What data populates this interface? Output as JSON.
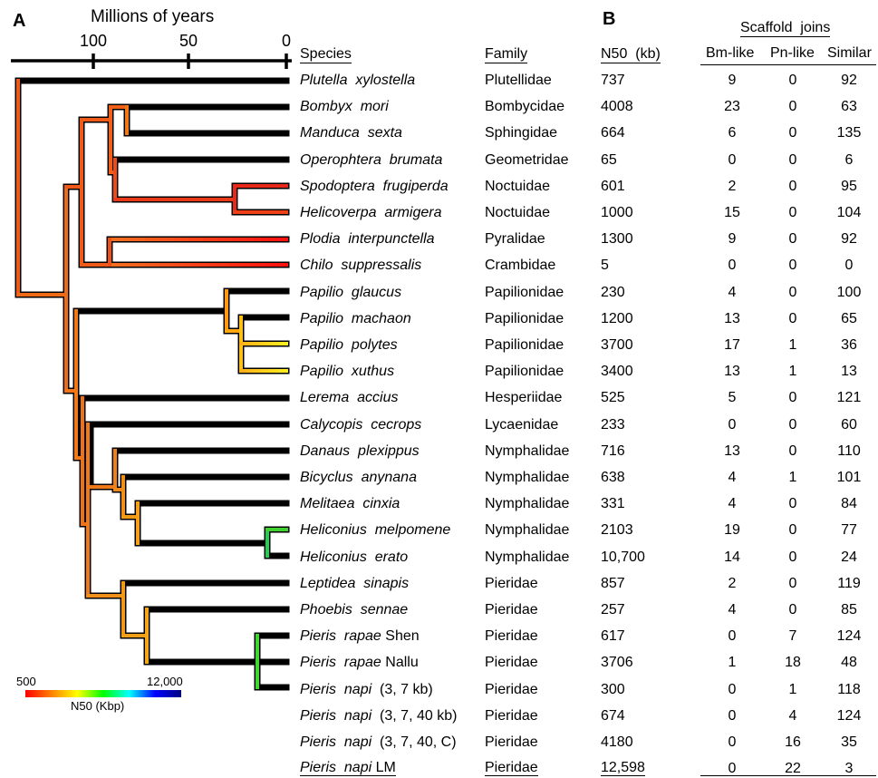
{
  "panel_a_label": "A",
  "panel_b_label": "B",
  "axis": {
    "title": "Millions of years",
    "ticks": [
      "100",
      "50",
      "0"
    ]
  },
  "headers": {
    "species": "Species",
    "family": "Family",
    "n50": "N50  (kb)",
    "scaffold_joins": "Scaffold  joins",
    "bm_like": "Bm-like",
    "pn_like": "Pn-like",
    "similar": "Similar"
  },
  "legend": {
    "min": "500",
    "max": "12,000",
    "label": "N50 (Kbp)",
    "colors": [
      "#ff0000",
      "#ff8000",
      "#ffff00",
      "#00ff00",
      "#00ffff",
      "#0000ff"
    ]
  },
  "rows": [
    {
      "species": "Plutella  xylostella",
      "suffix": "",
      "family": "Plutellidae",
      "n50": "737",
      "bm": "9",
      "pn": "0",
      "similar": "92"
    },
    {
      "species": "Bombyx  mori",
      "suffix": "",
      "family": "Bombycidae",
      "n50": "4008",
      "bm": "23",
      "pn": "0",
      "similar": "63"
    },
    {
      "species": "Manduca  sexta",
      "suffix": "",
      "family": "Sphingidae",
      "n50": "664",
      "bm": "6",
      "pn": "0",
      "similar": "135"
    },
    {
      "species": "Operophtera  brumata",
      "suffix": "",
      "family": "Geometridae",
      "n50": "65",
      "bm": "0",
      "pn": "0",
      "similar": "6"
    },
    {
      "species": "Spodoptera  frugiperda",
      "suffix": "",
      "family": "Noctuidae",
      "n50": "601",
      "bm": "2",
      "pn": "0",
      "similar": "95"
    },
    {
      "species": "Helicoverpa  armigera",
      "suffix": "",
      "family": "Noctuidae",
      "n50": "1000",
      "bm": "15",
      "pn": "0",
      "similar": "104"
    },
    {
      "species": "Plodia  interpunctella",
      "suffix": "",
      "family": "Pyralidae",
      "n50": "1300",
      "bm": "9",
      "pn": "0",
      "similar": "92"
    },
    {
      "species": "Chilo  suppressalis",
      "suffix": "",
      "family": "Crambidae",
      "n50": "5",
      "bm": "0",
      "pn": "0",
      "similar": "0"
    },
    {
      "species": "Papilio  glaucus",
      "suffix": "",
      "family": "Papilionidae",
      "n50": "230",
      "bm": "4",
      "pn": "0",
      "similar": "100"
    },
    {
      "species": "Papilio  machaon",
      "suffix": "",
      "family": "Papilionidae",
      "n50": "1200",
      "bm": "13",
      "pn": "0",
      "similar": "65"
    },
    {
      "species": "Papilio  polytes",
      "suffix": "",
      "family": "Papilionidae",
      "n50": "3700",
      "bm": "17",
      "pn": "1",
      "similar": "36"
    },
    {
      "species": "Papilio  xuthus",
      "suffix": "",
      "family": "Papilionidae",
      "n50": "3400",
      "bm": "13",
      "pn": "1",
      "similar": "13"
    },
    {
      "species": "Lerema  accius",
      "suffix": "",
      "family": "Hesperiidae",
      "n50": "525",
      "bm": "5",
      "pn": "0",
      "similar": "121"
    },
    {
      "species": "Calycopis  cecrops",
      "suffix": "",
      "family": "Lycaenidae",
      "n50": "233",
      "bm": "0",
      "pn": "0",
      "similar": "60"
    },
    {
      "species": "Danaus  plexippus",
      "suffix": "",
      "family": "Nymphalidae",
      "n50": "716",
      "bm": "13",
      "pn": "0",
      "similar": "110"
    },
    {
      "species": "Bicyclus  anynana",
      "suffix": "",
      "family": "Nymphalidae",
      "n50": "638",
      "bm": "4",
      "pn": "1",
      "similar": "101"
    },
    {
      "species": "Melitaea  cinxia",
      "suffix": "",
      "family": "Nymphalidae",
      "n50": "331",
      "bm": "4",
      "pn": "0",
      "similar": "84"
    },
    {
      "species": "Heliconius  melpomene",
      "suffix": "",
      "family": "Nymphalidae",
      "n50": "2103",
      "bm": "19",
      "pn": "0",
      "similar": "77"
    },
    {
      "species": "Heliconius  erato",
      "suffix": "",
      "family": "Nymphalidae",
      "n50": "10,700",
      "bm": "14",
      "pn": "0",
      "similar": "24"
    },
    {
      "species": "Leptidea  sinapis",
      "suffix": "",
      "family": "Pieridae",
      "n50": "857",
      "bm": "2",
      "pn": "0",
      "similar": "119"
    },
    {
      "species": "Phoebis  sennae",
      "suffix": "",
      "family": "Pieridae",
      "n50": "257",
      "bm": "4",
      "pn": "0",
      "similar": "85"
    },
    {
      "species": "Pieris  rapae",
      "suffix": " Shen",
      "family": "Pieridae",
      "n50": "617",
      "bm": "0",
      "pn": "7",
      "similar": "124"
    },
    {
      "species": "Pieris  rapae",
      "suffix": " Nallu",
      "family": "Pieridae",
      "n50": "3706",
      "bm": "1",
      "pn": "18",
      "similar": "48"
    },
    {
      "species": "Pieris  napi",
      "suffix": "  (3, 7 kb)",
      "family": "Pieridae",
      "n50": "300",
      "bm": "0",
      "pn": "1",
      "similar": "118"
    },
    {
      "species": "Pieris  napi",
      "suffix": "  (3, 7, 40 kb)",
      "family": "Pieridae",
      "n50": "674",
      "bm": "0",
      "pn": "4",
      "similar": "124"
    },
    {
      "species": "Pieris  napi",
      "suffix": "  (3, 7, 40, C)",
      "family": "Pieridae",
      "n50": "4180",
      "bm": "0",
      "pn": "16",
      "similar": "35"
    },
    {
      "species": "Pieris  napi",
      "suffix": " LM",
      "family": "Pieridae",
      "n50": "12,598",
      "bm": "0",
      "pn": "22",
      "similar": "3"
    }
  ]
}
